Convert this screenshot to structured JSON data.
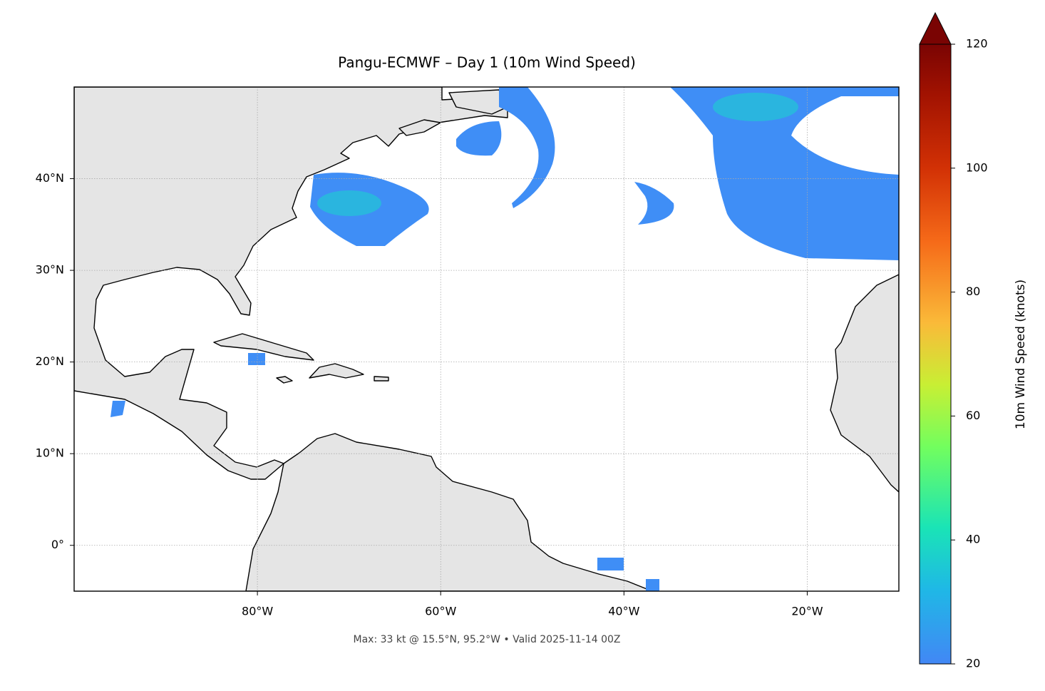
{
  "chart_data": {
    "type": "map",
    "title": "Pangu-ECMWF – Day 1 (10m Wind Speed)",
    "footer": "Max: 33 kt @ 15.5°N, 95.2°W • Valid 2025-11-14 00Z",
    "xlim": [
      -100,
      -10
    ],
    "ylim": [
      -5,
      50
    ],
    "xticks": [
      {
        "value": -80,
        "label": "80°W"
      },
      {
        "value": -60,
        "label": "60°W"
      },
      {
        "value": -40,
        "label": "40°W"
      },
      {
        "value": -20,
        "label": "20°W"
      }
    ],
    "yticks": [
      {
        "value": 0,
        "label": "0°"
      },
      {
        "value": 10,
        "label": "10°N"
      },
      {
        "value": 20,
        "label": "20°N"
      },
      {
        "value": 30,
        "label": "30°N"
      },
      {
        "value": 40,
        "label": "40°N"
      }
    ],
    "grid": true,
    "colorbar_label": "10m Wind Speed (knots)",
    "clim": [
      20,
      120
    ],
    "cticks": [
      20,
      40,
      60,
      80,
      100,
      120
    ]
  }
}
